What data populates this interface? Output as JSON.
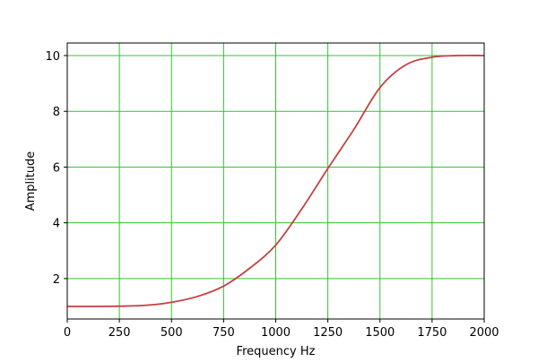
{
  "chart_data": {
    "type": "line",
    "title": "",
    "xlabel": "Frequency Hz",
    "ylabel": "Amplitude",
    "xlim": [
      0,
      2000
    ],
    "ylim": [
      0.55,
      10.45
    ],
    "xticks": [
      0,
      250,
      500,
      750,
      1000,
      1250,
      1500,
      1750,
      2000
    ],
    "yticks": [
      2,
      4,
      6,
      8,
      10
    ],
    "grid": true,
    "colors": {
      "line": "#c44040",
      "grid": "#33c433"
    },
    "series": [
      {
        "x": [
          0,
          125,
          250,
          375,
          500,
          625,
          750,
          875,
          1000,
          1125,
          1250,
          1375,
          1500,
          1625,
          1750,
          1875,
          2000
        ],
        "y": [
          1.0,
          1.0,
          1.01,
          1.04,
          1.15,
          1.36,
          1.73,
          2.37,
          3.2,
          4.5,
          5.95,
          7.35,
          8.85,
          9.67,
          9.94,
          10.0,
          10.0
        ]
      }
    ]
  }
}
